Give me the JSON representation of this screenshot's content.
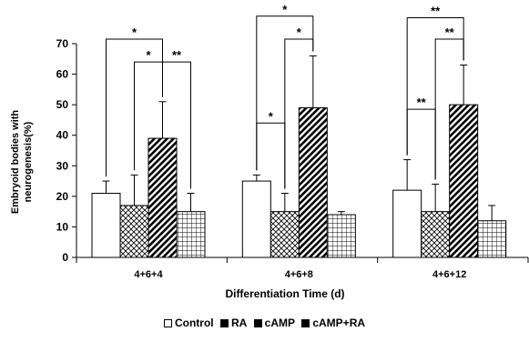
{
  "chart_data": {
    "type": "bar",
    "title": "",
    "xlabel": "Differentiation Time (d)",
    "ylabel": "Embryoid bodies with neurogenesis(%)",
    "ylim": [
      0,
      70
    ],
    "yticks": [
      "0",
      "10",
      "20",
      "30",
      "40",
      "50",
      "60",
      "70"
    ],
    "categories": [
      "4+6+4",
      "4+6+8",
      "4+6+12"
    ],
    "series": [
      {
        "name": "Control",
        "pattern": "open",
        "values": [
          21,
          25,
          22
        ],
        "errors": [
          4,
          2,
          10
        ]
      },
      {
        "name": "RA",
        "pattern": "crosshatch",
        "values": [
          17,
          15,
          15
        ],
        "errors": [
          10,
          6,
          9
        ]
      },
      {
        "name": "cAMP",
        "pattern": "diagonal",
        "values": [
          39,
          49,
          50
        ],
        "errors": [
          12,
          17,
          13
        ]
      },
      {
        "name": "cAMP+RA",
        "pattern": "grid",
        "values": [
          15,
          14,
          12
        ],
        "errors": [
          6,
          1,
          5
        ]
      }
    ],
    "legend_position": "bottom",
    "significance": [
      {
        "category": 0,
        "from": 0,
        "to": 2,
        "y": 71.5,
        "label": "*"
      },
      {
        "category": 0,
        "from": 1,
        "to": 2,
        "y": 64,
        "label": "*"
      },
      {
        "category": 0,
        "from": 2,
        "to": 3,
        "y": 64,
        "label": "**"
      },
      {
        "category": 1,
        "from": 0,
        "to": 2,
        "y": 79,
        "label": "*"
      },
      {
        "category": 1,
        "from": 1,
        "to": 2,
        "y": 71.5,
        "label": "*"
      },
      {
        "category": 1,
        "from": 0,
        "to": 1,
        "y": 44,
        "label": "*"
      },
      {
        "category": 2,
        "from": 0,
        "to": 2,
        "y": 78.5,
        "label": "**"
      },
      {
        "category": 2,
        "from": 1,
        "to": 2,
        "y": 71.5,
        "label": "**"
      },
      {
        "category": 2,
        "from": 0,
        "to": 1,
        "y": 48.5,
        "label": "**"
      }
    ]
  }
}
